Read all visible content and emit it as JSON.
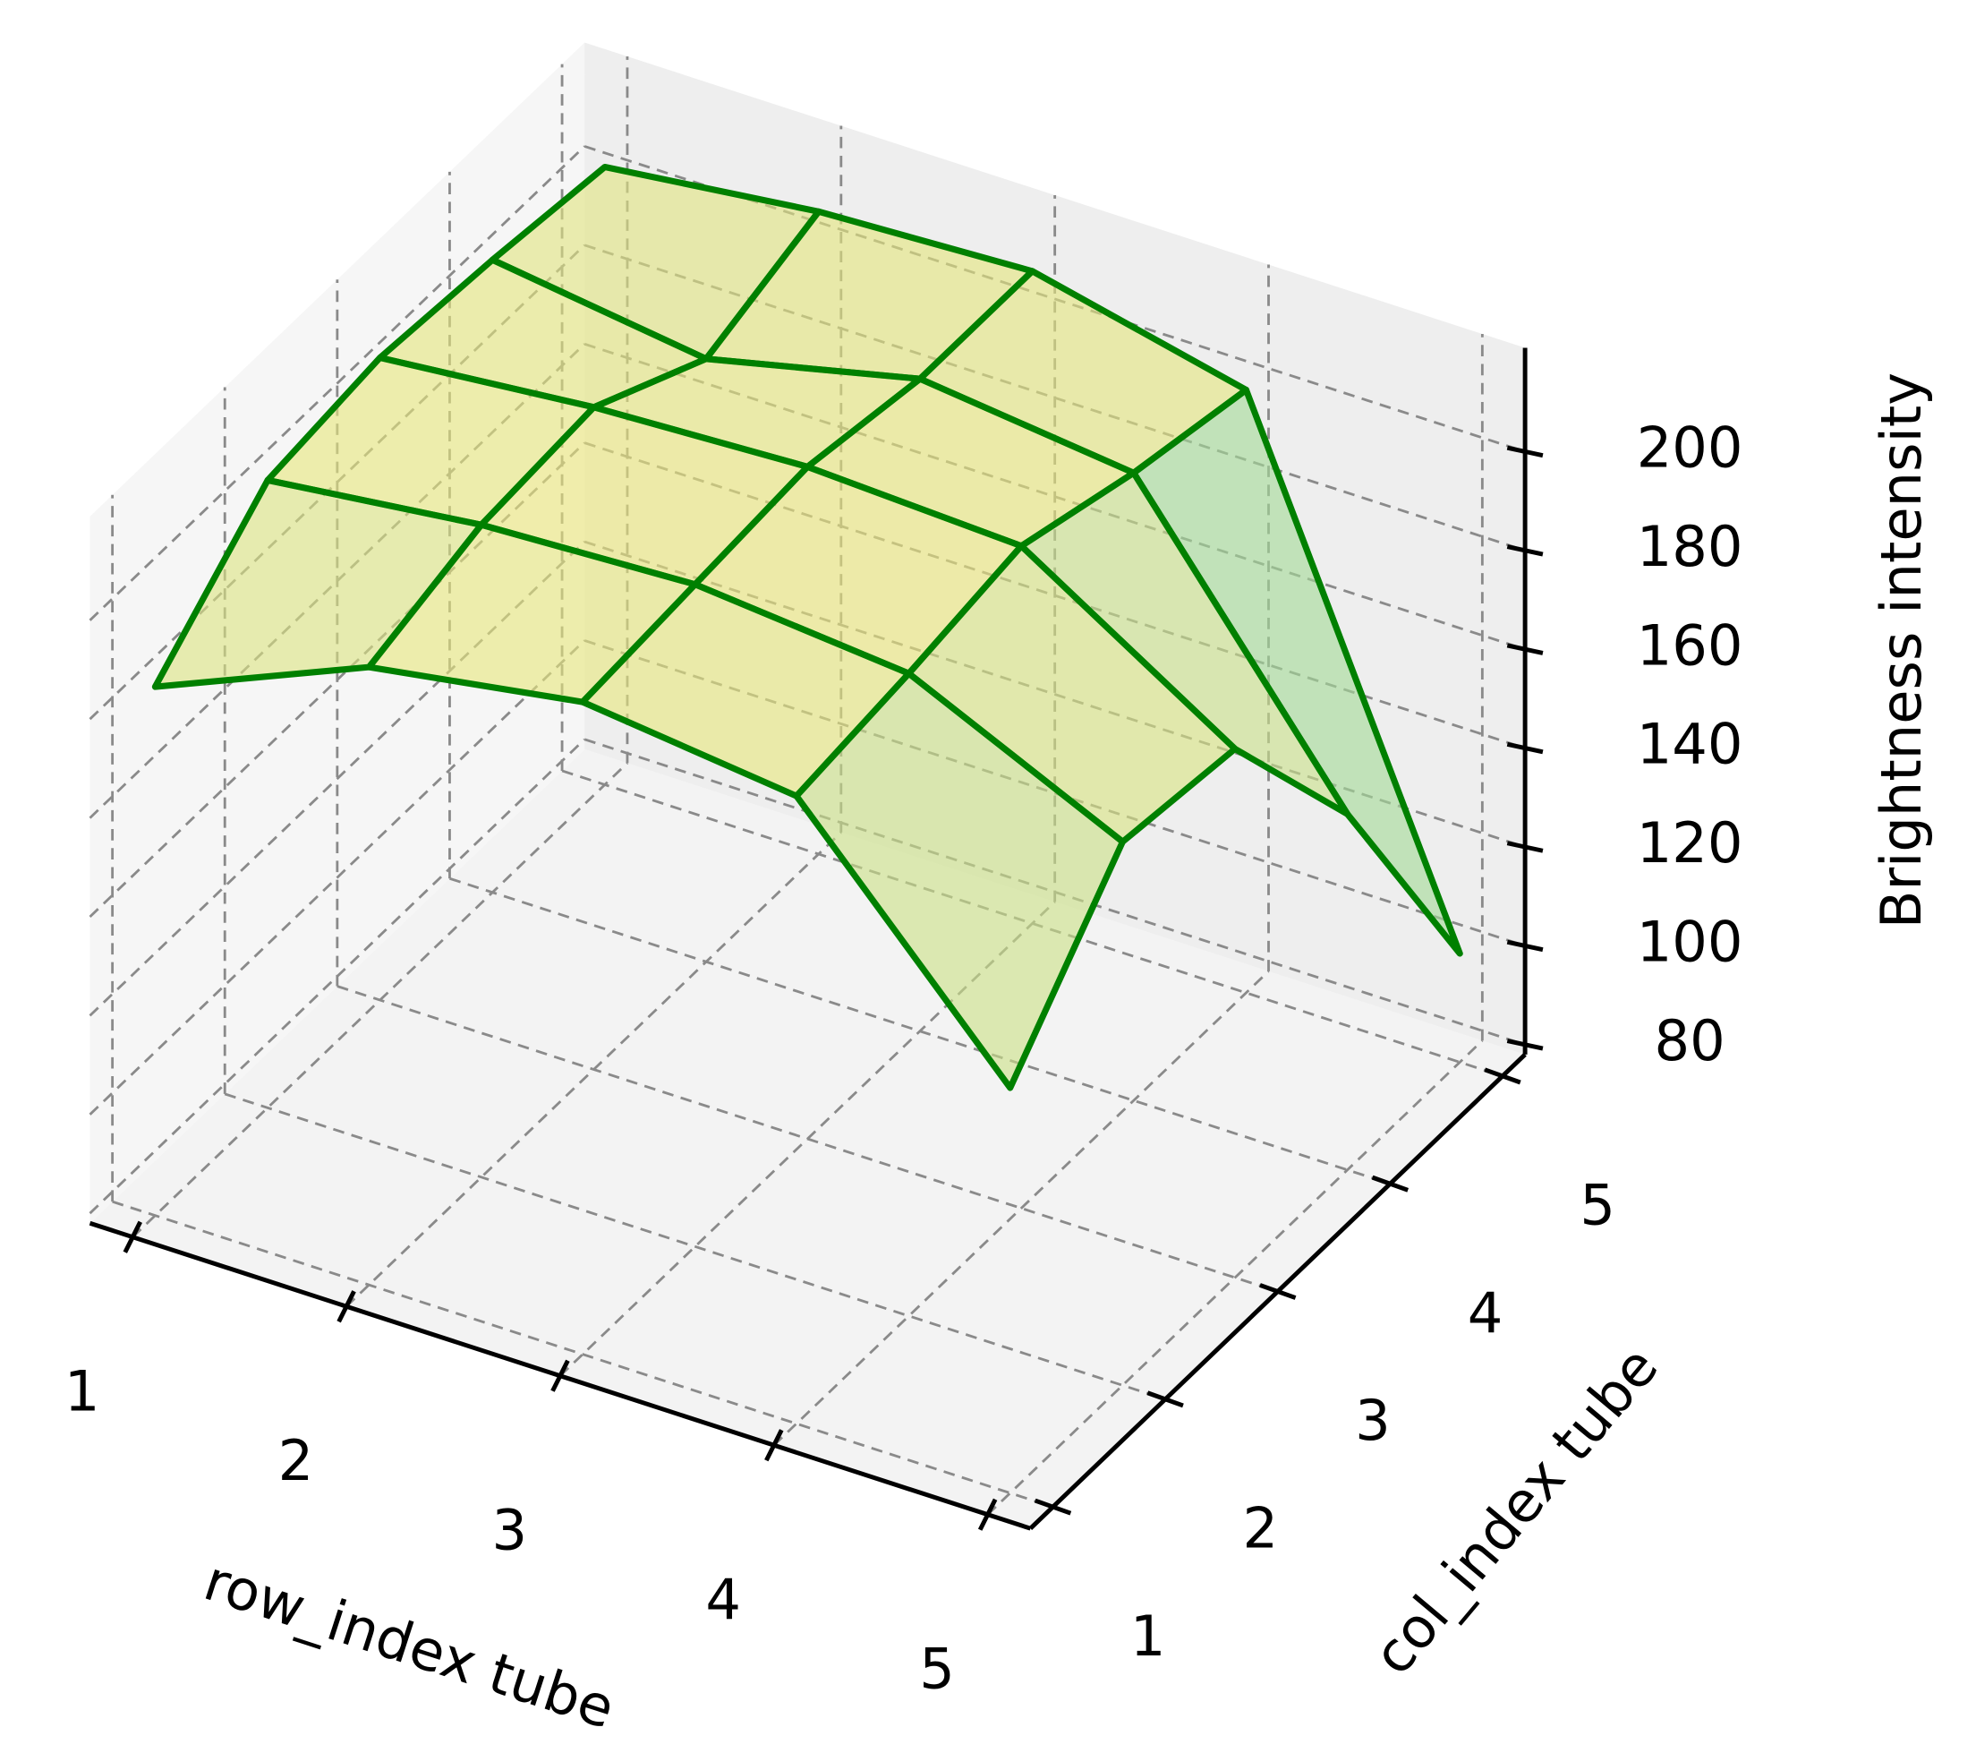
{
  "chart_data": {
    "type": "surface3d",
    "x_label": "row_index tube",
    "y_label": "col_index tube",
    "z_label": "Brightness intensity",
    "x": [
      1,
      2,
      3,
      4,
      5
    ],
    "y": [
      1,
      2,
      3,
      4,
      5
    ],
    "z": [
      [
        185,
        205,
        208,
        206,
        203
      ],
      [
        203,
        210,
        212,
        200,
        208
      ],
      [
        210,
        212,
        214,
        210,
        210
      ],
      [
        205,
        208,
        212,
        205,
        200
      ],
      [
        160,
        188,
        185,
        150,
        100
      ]
    ],
    "xlim": [
      0.8,
      5.2
    ],
    "ylim": [
      0.8,
      5.2
    ],
    "zlim": [
      78,
      221
    ],
    "xticks": [
      1,
      2,
      3,
      4,
      5
    ],
    "yticks": [
      1,
      2,
      3,
      4,
      5
    ],
    "zticks": [
      80,
      100,
      120,
      140,
      160,
      180,
      200
    ],
    "grid": true,
    "edgecolor": "#008000",
    "colormap": [
      "#55c2bd",
      "#9ad89a",
      "#f0e878"
    ],
    "pane_colors": {
      "floor": "#f3f3f3",
      "left": "#f6f6f6",
      "back": "#eeeeee"
    }
  }
}
